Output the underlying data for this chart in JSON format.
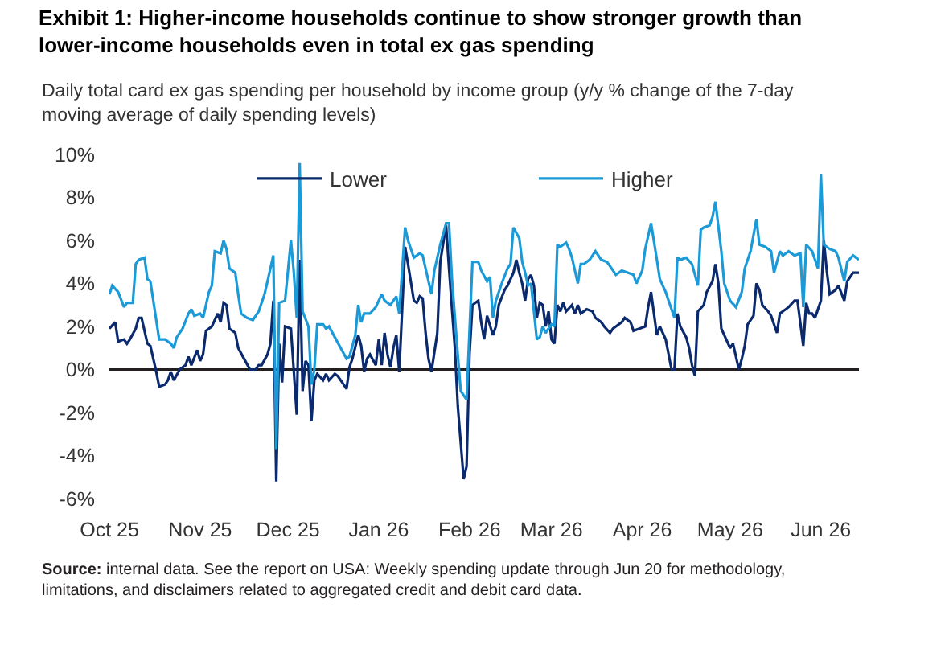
{
  "chart_data": {
    "type": "line",
    "title": "Exhibit 1: Higher-income households continue to show stronger growth than lower-income households even in total ex gas spending",
    "subtitle": "Daily total card ex gas spending per household by income group (y/y % change of the 7-day moving average of daily spending levels)",
    "annotations": [
      "Source: internal data. See the report on USA: Weekly spending update through Jun 20 for methodology, limitations, and disclaimers related to aggregated credit and debit card data."
    ],
    "xlim": [
      "2025-10-01",
      "2026-06-14"
    ],
    "xticks": [
      {
        "value": "2025-10-01",
        "label": "Oct 25"
      },
      {
        "value": "2025-11-01",
        "label": "Nov 25"
      },
      {
        "value": "2025-12-01",
        "label": "Dec 25"
      },
      {
        "value": "2026-01-01",
        "label": "Jan 26"
      },
      {
        "value": "2026-02-01",
        "label": "Feb 26"
      },
      {
        "value": "2026-03-01",
        "label": "Mar 26"
      },
      {
        "value": "2026-04-01",
        "label": "Apr 26"
      },
      {
        "value": "2026-05-01",
        "label": "May 26"
      },
      {
        "value": "2026-06-01",
        "label": "Jun 26"
      }
    ],
    "ylim": [
      -6,
      10
    ],
    "yticks": [
      {
        "value": -6,
        "label": "-6%"
      },
      {
        "value": -4,
        "label": "-4%"
      },
      {
        "value": -2,
        "label": "-2%"
      },
      {
        "value": 0,
        "label": "0%"
      },
      {
        "value": 2,
        "label": "2%"
      },
      {
        "value": 4,
        "label": "4%"
      },
      {
        "value": 6,
        "label": "6%"
      },
      {
        "value": 8,
        "label": "8%"
      },
      {
        "value": 10,
        "label": "10%"
      }
    ],
    "legend": "top right",
    "line_style": "solid",
    "ref_lines": [
      {
        "axis": "y",
        "value": 0,
        "label": null,
        "color": "#231f20"
      }
    ],
    "series": [
      {
        "name": "Lower",
        "color": "#0b2a6e",
        "x": [
          "2025-10-01",
          "2025-10-03",
          "2025-10-04",
          "2025-10-06",
          "2025-10-07",
          "2025-10-08",
          "2025-10-10",
          "2025-10-11",
          "2025-10-12",
          "2025-10-14",
          "2025-10-15",
          "2025-10-17",
          "2025-10-18",
          "2025-10-20",
          "2025-10-21",
          "2025-10-22",
          "2025-10-23",
          "2025-10-25",
          "2025-10-27",
          "2025-10-28",
          "2025-10-29",
          "2025-10-31",
          "2025-11-01",
          "2025-11-02",
          "2025-11-03",
          "2025-11-05",
          "2025-11-07",
          "2025-11-08",
          "2025-11-09",
          "2025-11-10",
          "2025-11-11",
          "2025-11-13",
          "2025-11-14",
          "2025-11-16",
          "2025-11-18",
          "2025-11-20",
          "2025-11-21",
          "2025-11-22",
          "2025-11-24",
          "2025-11-25",
          "2025-11-26",
          "2025-11-27",
          "2025-11-28",
          "2025-11-29",
          "2025-11-30",
          "2025-12-02",
          "2025-12-04",
          "2025-12-05",
          "2025-12-06",
          "2025-12-07",
          "2025-12-08",
          "2025-12-09",
          "2025-12-10",
          "2025-12-11",
          "2025-12-13",
          "2025-12-14",
          "2025-12-15",
          "2025-12-17",
          "2025-12-18",
          "2025-12-20",
          "2025-12-21",
          "2025-12-22",
          "2025-12-23",
          "2025-12-25",
          "2025-12-26",
          "2025-12-27",
          "2025-12-28",
          "2025-12-29",
          "2025-12-31",
          "2026-01-01",
          "2026-01-02",
          "2026-01-03",
          "2026-01-04",
          "2026-01-05",
          "2026-01-06",
          "2026-01-07",
          "2026-01-08",
          "2026-01-10",
          "2026-01-11",
          "2026-01-13",
          "2026-01-14",
          "2026-01-15",
          "2026-01-16",
          "2026-01-17",
          "2026-01-18",
          "2026-01-19",
          "2026-01-21",
          "2026-01-22",
          "2026-01-24",
          "2026-01-25",
          "2026-01-27",
          "2026-01-28",
          "2026-01-30",
          "2026-01-31",
          "2026-02-01",
          "2026-02-02",
          "2026-02-04",
          "2026-02-05",
          "2026-02-06",
          "2026-02-07",
          "2026-02-09",
          "2026-02-10",
          "2026-02-11",
          "2026-02-13",
          "2026-02-14",
          "2026-02-16",
          "2026-02-17",
          "2026-02-18",
          "2026-02-19",
          "2026-02-20",
          "2026-02-21",
          "2026-02-22",
          "2026-02-23",
          "2026-02-24",
          "2026-02-25",
          "2026-02-26",
          "2026-02-27",
          "2026-02-28",
          "2026-03-01",
          "2026-03-02",
          "2026-03-03",
          "2026-03-04",
          "2026-03-05",
          "2026-03-06",
          "2026-03-08",
          "2026-03-09",
          "2026-03-10",
          "2026-03-11",
          "2026-03-13",
          "2026-03-15",
          "2026-03-16",
          "2026-03-18",
          "2026-03-19",
          "2026-03-21",
          "2026-03-22",
          "2026-03-23",
          "2026-03-25",
          "2026-03-26",
          "2026-03-28",
          "2026-03-29",
          "2026-03-31",
          "2026-04-02",
          "2026-04-03",
          "2026-04-04",
          "2026-04-06",
          "2026-04-07",
          "2026-04-08",
          "2026-04-09",
          "2026-04-11",
          "2026-04-12",
          "2026-04-13",
          "2026-04-14",
          "2026-04-16",
          "2026-04-17",
          "2026-04-18",
          "2026-04-19",
          "2026-04-20",
          "2026-04-22",
          "2026-04-23",
          "2026-04-25",
          "2026-04-26",
          "2026-04-27",
          "2026-04-28",
          "2026-04-29",
          "2026-05-01",
          "2026-05-02",
          "2026-05-04",
          "2026-05-05",
          "2026-05-06",
          "2026-05-07",
          "2026-05-09",
          "2026-05-10",
          "2026-05-11",
          "2026-05-12",
          "2026-05-14",
          "2026-05-15",
          "2026-05-17",
          "2026-05-18",
          "2026-05-19",
          "2026-05-21",
          "2026-05-23",
          "2026-05-24",
          "2026-05-26",
          "2026-05-27",
          "2026-05-28",
          "2026-05-29",
          "2026-05-30",
          "2026-06-01",
          "2026-06-02",
          "2026-06-03",
          "2026-06-04",
          "2026-06-06",
          "2026-06-07",
          "2026-06-09",
          "2026-06-10",
          "2026-06-12",
          "2026-06-13",
          "2026-06-14"
        ],
        "values": [
          1.9,
          2.2,
          1.3,
          1.4,
          1.2,
          1.4,
          1.9,
          2.4,
          2.4,
          1.2,
          1.1,
          -0.1,
          -0.8,
          -0.7,
          -0.5,
          -0.1,
          -0.5,
          0.0,
          0.2,
          0.6,
          0.2,
          0.9,
          0.4,
          0.7,
          1.8,
          2.0,
          2.6,
          2.2,
          3.1,
          3.0,
          1.9,
          1.7,
          1.0,
          0.5,
          0.0,
          0.0,
          0.2,
          0.2,
          0.7,
          1.2,
          3.2,
          -5.2,
          1.2,
          -0.6,
          2.0,
          1.9,
          -2.1,
          5.1,
          -1.0,
          0.4,
          0.2,
          -2.4,
          -0.5,
          -0.2,
          -0.5,
          -0.2,
          -0.5,
          -0.2,
          -0.3,
          -0.7,
          -0.9,
          0.1,
          0.5,
          1.6,
          1.1,
          -0.1,
          0.5,
          0.7,
          0.2,
          1.4,
          0.2,
          1.7,
          0.7,
          0.1,
          1.0,
          1.6,
          -0.1,
          5.7,
          4.9,
          3.2,
          3.1,
          3.4,
          3.3,
          1.7,
          0.5,
          -0.1,
          1.7,
          5.0,
          6.7,
          4.7,
          1.0,
          -1.7,
          -5.1,
          -4.5,
          0.7,
          3.0,
          3.2,
          2.2,
          1.4,
          2.5,
          1.6,
          2.0,
          3.0,
          3.7,
          3.9,
          4.5,
          5.1,
          4.5,
          4.0,
          3.2,
          4.2,
          4.4,
          3.9,
          2.4,
          3.1,
          3.0,
          2.0,
          2.7,
          1.4,
          1.2,
          3.0,
          2.7,
          3.1,
          2.7,
          3.0,
          2.6,
          3.0,
          2.6,
          2.8,
          2.7,
          2.4,
          2.2,
          2.0,
          1.7,
          1.9,
          2.0,
          2.2,
          2.4,
          2.2,
          1.8,
          1.9,
          2.0,
          2.9,
          3.6,
          1.6,
          2.0,
          1.7,
          1.4,
          0.0,
          0.0,
          2.6,
          2.0,
          1.5,
          1.0,
          0.2,
          -0.3,
          2.7,
          3.0,
          3.6,
          4.1,
          4.9,
          4.0,
          1.9,
          1.6,
          1.0,
          1.2,
          0.0,
          0.5,
          1.1,
          2.1,
          2.5,
          4.0,
          3.7,
          3.0,
          2.7,
          2.5,
          1.7,
          2.6,
          2.7,
          2.9,
          3.2,
          3.2,
          1.1,
          3.1,
          2.6,
          2.6,
          2.4,
          3.2,
          6.0,
          4.6,
          3.5,
          3.7,
          3.9,
          3.2,
          4.1,
          4.5,
          4.5,
          4.5
        ]
      },
      {
        "name": "Higher",
        "color": "#1b9ad7",
        "x": [
          "2025-10-01",
          "2025-10-02",
          "2025-10-04",
          "2025-10-06",
          "2025-10-07",
          "2025-10-09",
          "2025-10-10",
          "2025-10-11",
          "2025-10-13",
          "2025-10-14",
          "2025-10-15",
          "2025-10-18",
          "2025-10-20",
          "2025-10-22",
          "2025-10-23",
          "2025-10-24",
          "2025-10-26",
          "2025-10-28",
          "2025-10-29",
          "2025-10-30",
          "2025-11-01",
          "2025-11-02",
          "2025-11-04",
          "2025-11-05",
          "2025-11-06",
          "2025-11-08",
          "2025-11-09",
          "2025-11-10",
          "2025-11-11",
          "2025-11-13",
          "2025-11-14",
          "2025-11-15",
          "2025-11-17",
          "2025-11-19",
          "2025-11-21",
          "2025-11-23",
          "2025-11-24",
          "2025-11-26",
          "2025-11-27",
          "2025-11-28",
          "2025-11-30",
          "2025-12-02",
          "2025-12-03",
          "2025-12-04",
          "2025-12-05",
          "2025-12-06",
          "2025-12-08",
          "2025-12-09",
          "2025-12-10",
          "2025-12-11",
          "2025-12-13",
          "2025-12-14",
          "2025-12-15",
          "2025-12-17",
          "2025-12-19",
          "2025-12-21",
          "2025-12-22",
          "2025-12-24",
          "2025-12-25",
          "2025-12-26",
          "2025-12-27",
          "2025-12-29",
          "2025-12-31",
          "2026-01-02",
          "2026-01-03",
          "2026-01-05",
          "2026-01-06",
          "2026-01-07",
          "2026-01-08",
          "2026-01-10",
          "2026-01-11",
          "2026-01-13",
          "2026-01-15",
          "2026-01-16",
          "2026-01-17",
          "2026-01-19",
          "2026-01-20",
          "2026-01-22",
          "2026-01-24",
          "2026-01-25",
          "2026-01-26",
          "2026-01-28",
          "2026-01-29",
          "2026-01-31",
          "2026-02-02",
          "2026-02-04",
          "2026-02-05",
          "2026-02-07",
          "2026-02-08",
          "2026-02-09",
          "2026-02-10",
          "2026-02-12",
          "2026-02-14",
          "2026-02-15",
          "2026-02-16",
          "2026-02-18",
          "2026-02-19",
          "2026-02-20",
          "2026-02-21",
          "2026-02-22",
          "2026-02-24",
          "2026-02-25",
          "2026-02-26",
          "2026-02-27",
          "2026-03-01",
          "2026-03-02",
          "2026-03-03",
          "2026-03-04",
          "2026-03-06",
          "2026-03-07",
          "2026-03-08",
          "2026-03-10",
          "2026-03-11",
          "2026-03-12",
          "2026-03-14",
          "2026-03-16",
          "2026-03-18",
          "2026-03-20",
          "2026-03-22",
          "2026-03-23",
          "2026-03-25",
          "2026-03-27",
          "2026-03-29",
          "2026-03-30",
          "2026-04-01",
          "2026-04-02",
          "2026-04-04",
          "2026-04-06",
          "2026-04-07",
          "2026-04-09",
          "2026-04-10",
          "2026-04-12",
          "2026-04-13",
          "2026-04-14",
          "2026-04-16",
          "2026-04-18",
          "2026-04-20",
          "2026-04-21",
          "2026-04-22",
          "2026-04-24",
          "2026-04-25",
          "2026-04-26",
          "2026-04-28",
          "2026-04-29",
          "2026-05-01",
          "2026-05-03",
          "2026-05-05",
          "2026-05-06",
          "2026-05-08",
          "2026-05-10",
          "2026-05-11",
          "2026-05-13",
          "2026-05-15",
          "2026-05-16",
          "2026-05-18",
          "2026-05-19",
          "2026-05-21",
          "2026-05-23",
          "2026-05-25",
          "2026-05-26",
          "2026-05-27",
          "2026-05-29",
          "2026-05-30",
          "2026-05-31",
          "2026-06-01",
          "2026-06-02",
          "2026-06-04",
          "2026-06-06",
          "2026-06-07",
          "2026-06-09",
          "2026-06-10",
          "2026-06-12",
          "2026-06-13",
          "2026-06-14"
        ],
        "values": [
          3.5,
          3.9,
          3.6,
          2.9,
          3.1,
          3.1,
          4.9,
          5.1,
          5.2,
          4.2,
          4.1,
          1.4,
          1.4,
          1.2,
          1.0,
          1.5,
          1.9,
          2.6,
          2.8,
          2.5,
          2.6,
          2.4,
          3.6,
          3.9,
          5.5,
          5.4,
          6.0,
          5.6,
          4.7,
          4.5,
          3.5,
          2.6,
          2.4,
          2.3,
          2.7,
          3.5,
          4.1,
          5.3,
          -3.7,
          3.1,
          3.2,
          6.0,
          4.5,
          2.4,
          9.6,
          2.7,
          2.0,
          -0.7,
          0.0,
          2.1,
          2.1,
          1.9,
          2.0,
          1.5,
          1.0,
          0.5,
          0.6,
          1.6,
          3.0,
          2.2,
          2.6,
          2.6,
          2.9,
          3.5,
          3.2,
          3.0,
          3.2,
          3.4,
          2.6,
          6.6,
          6.0,
          5.2,
          5.4,
          5.3,
          4.7,
          3.5,
          4.6,
          5.8,
          6.8,
          6.8,
          4.2,
          0.7,
          -1.0,
          -1.4,
          5.0,
          5.0,
          4.6,
          4.1,
          4.3,
          2.4,
          3.2,
          4.0,
          4.7,
          4.9,
          6.6,
          6.1,
          5.0,
          4.5,
          3.9,
          4.0,
          1.4,
          1.5,
          2.0,
          1.7,
          2.1,
          2.0,
          5.8,
          5.7,
          5.9,
          5.6,
          5.2,
          4.0,
          4.9,
          4.9,
          5.1,
          5.5,
          5.1,
          5.0,
          4.6,
          4.4,
          4.6,
          4.5,
          4.4,
          4.0,
          4.6,
          5.6,
          6.8,
          5.1,
          4.2,
          3.6,
          3.2,
          2.4,
          5.2,
          5.1,
          5.2,
          4.9,
          3.9,
          6.5,
          6.6,
          6.7,
          7.1,
          7.8,
          5.5,
          4.0,
          3.2,
          2.9,
          3.6,
          4.7,
          5.5,
          7.0,
          5.8,
          5.7,
          5.5,
          4.5,
          5.5,
          5.3,
          5.5,
          5.3,
          5.4,
          2.9,
          5.8,
          5.5,
          5.1,
          4.7,
          9.1,
          5.8,
          5.6,
          5.5,
          5.2,
          4.1,
          5.0,
          5.3,
          5.2,
          5.1
        ]
      }
    ]
  }
}
